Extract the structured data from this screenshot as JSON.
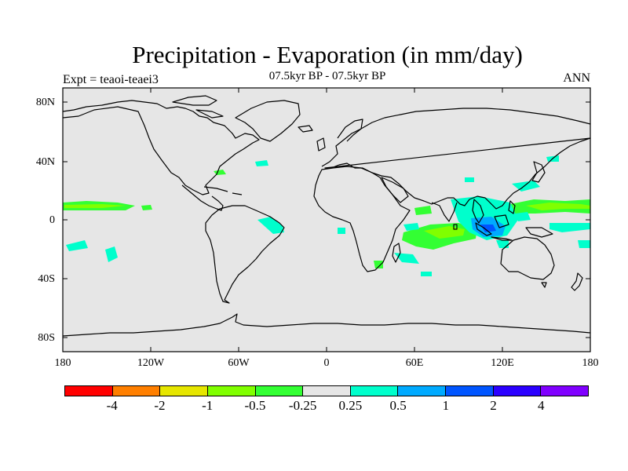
{
  "title": "Precipitation - Evaporation (in mm/day)",
  "subtitle": "07.5kyr BP - 07.5kyr BP",
  "left_label": "Expt = teaoi-teaei3",
  "right_label": "ANN",
  "latitude_ticks": [
    "80N",
    "40N",
    "0",
    "40S",
    "80S"
  ],
  "longitude_ticks": [
    "180",
    "120W",
    "60W",
    "0",
    "60E",
    "120E",
    "180"
  ],
  "colorbar": {
    "colors": [
      "#ff0000",
      "#ff7f00",
      "#e6e600",
      "#80ff00",
      "#33ff33",
      "#e6e6e6",
      "#00ffcc",
      "#00aaff",
      "#0055ff",
      "#2b00ff",
      "#8000ff"
    ],
    "labels": [
      "-4",
      "-2",
      "-1",
      "-0.5",
      "-0.25",
      "0.25",
      "0.5",
      "1",
      "2",
      "4"
    ]
  },
  "colors": {
    "map_background": "#e6e6e6",
    "positive_light": "#00ffcc",
    "positive_mid": "#00aaff",
    "positive_strong": "#0055ff",
    "negative_light": "#33ff33",
    "negative_mid": "#80ff00"
  }
}
